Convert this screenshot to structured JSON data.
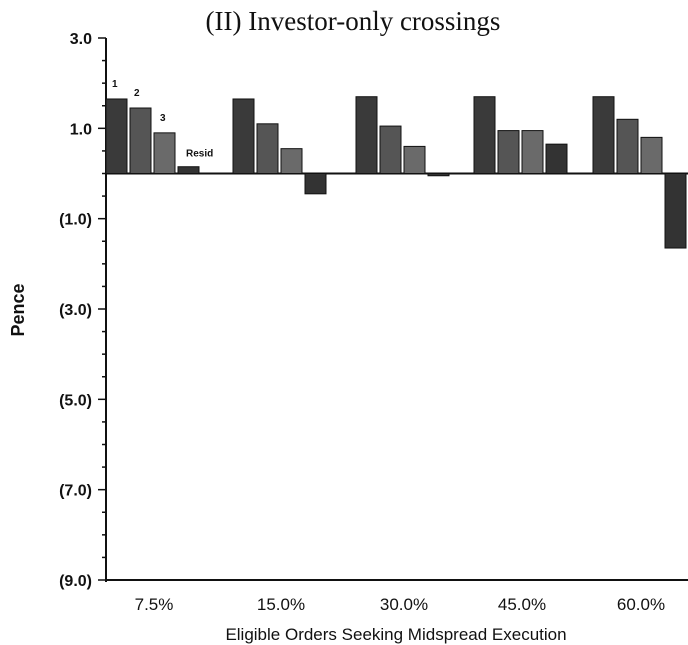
{
  "chart_data": {
    "type": "bar",
    "title": "(II) Investor-only crossings",
    "xlabel": "Eligible Orders Seeking Midspread Execution",
    "ylabel": "Pence",
    "ylim": [
      -9.0,
      3.0
    ],
    "yticks": [
      "3.0",
      "1.0",
      "(1.0)",
      "(3.0)",
      "(5.0)",
      "(7.0)",
      "(9.0)"
    ],
    "categories": [
      "7.5%",
      "15.0%",
      "30.0%",
      "45.0%",
      "60.0%"
    ],
    "series": [
      {
        "name": "1",
        "values": [
          1.65,
          1.65,
          1.7,
          1.7,
          1.7
        ]
      },
      {
        "name": "2",
        "values": [
          1.45,
          1.1,
          1.05,
          0.95,
          1.2
        ]
      },
      {
        "name": "3",
        "values": [
          0.9,
          0.55,
          0.6,
          0.95,
          0.8
        ]
      },
      {
        "name": "Resid",
        "values": [
          0.15,
          -0.45,
          -0.05,
          0.65,
          -1.65
        ]
      }
    ],
    "grid": false,
    "legend": "none"
  }
}
